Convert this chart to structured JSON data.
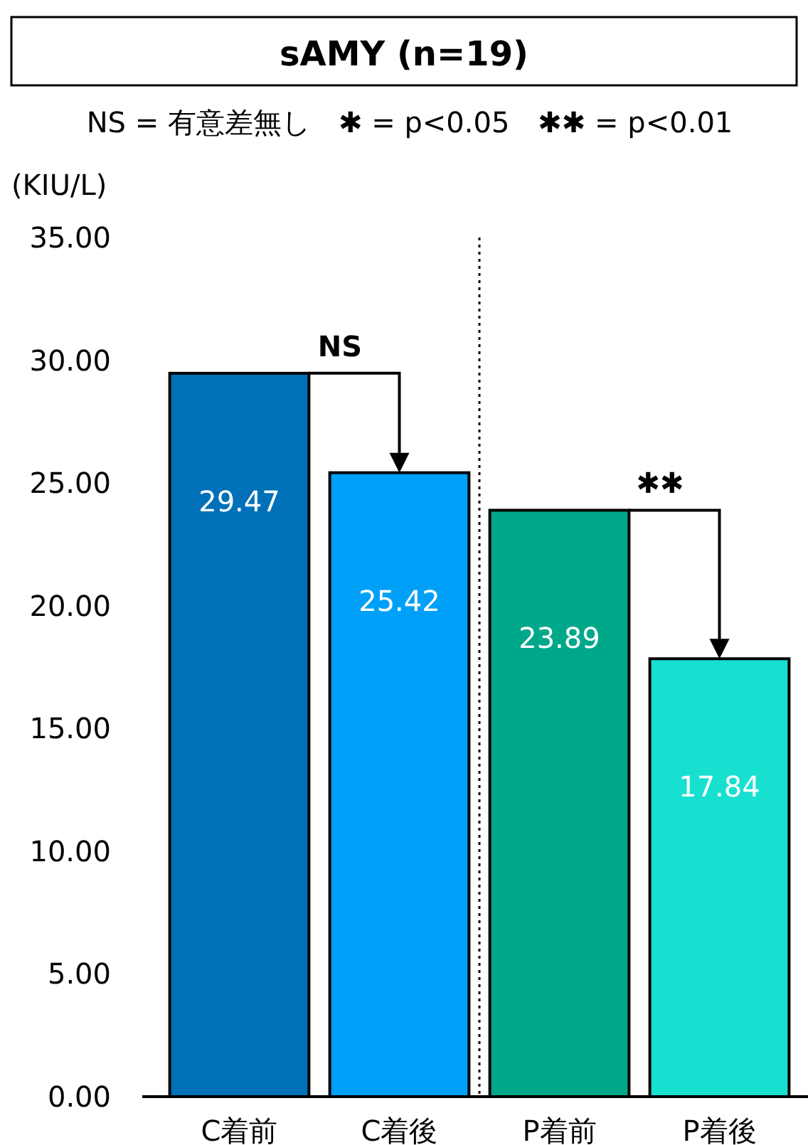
{
  "chart_data": {
    "type": "bar",
    "title": "sAMY (n=19)",
    "subtitle": "NS = 有意差無し　✱ = p<0.05　✱✱ = p<0.01",
    "ylabel": "(KIU/L)",
    "categories": [
      "C着前",
      "C着後",
      "P着前",
      "P着後"
    ],
    "values": [
      29.47,
      25.42,
      23.89,
      17.84
    ],
    "colors": [
      "#0070b8",
      "#00a0f8",
      "#00a88a",
      "#18e0d0"
    ],
    "data_labels": true,
    "ylim": [
      0,
      35
    ],
    "yticks": [
      {
        "value": 0,
        "label": "0.00"
      },
      {
        "value": 5,
        "label": "5.00"
      },
      {
        "value": 10,
        "label": "10.00"
      },
      {
        "value": 15,
        "label": "15.00"
      },
      {
        "value": 20,
        "label": "20.00"
      },
      {
        "value": 25,
        "label": "25.00"
      },
      {
        "value": 30,
        "label": "30.00"
      },
      {
        "value": 35,
        "label": "35.00"
      }
    ],
    "annotations": [
      "NS",
      "✱✱"
    ]
  }
}
